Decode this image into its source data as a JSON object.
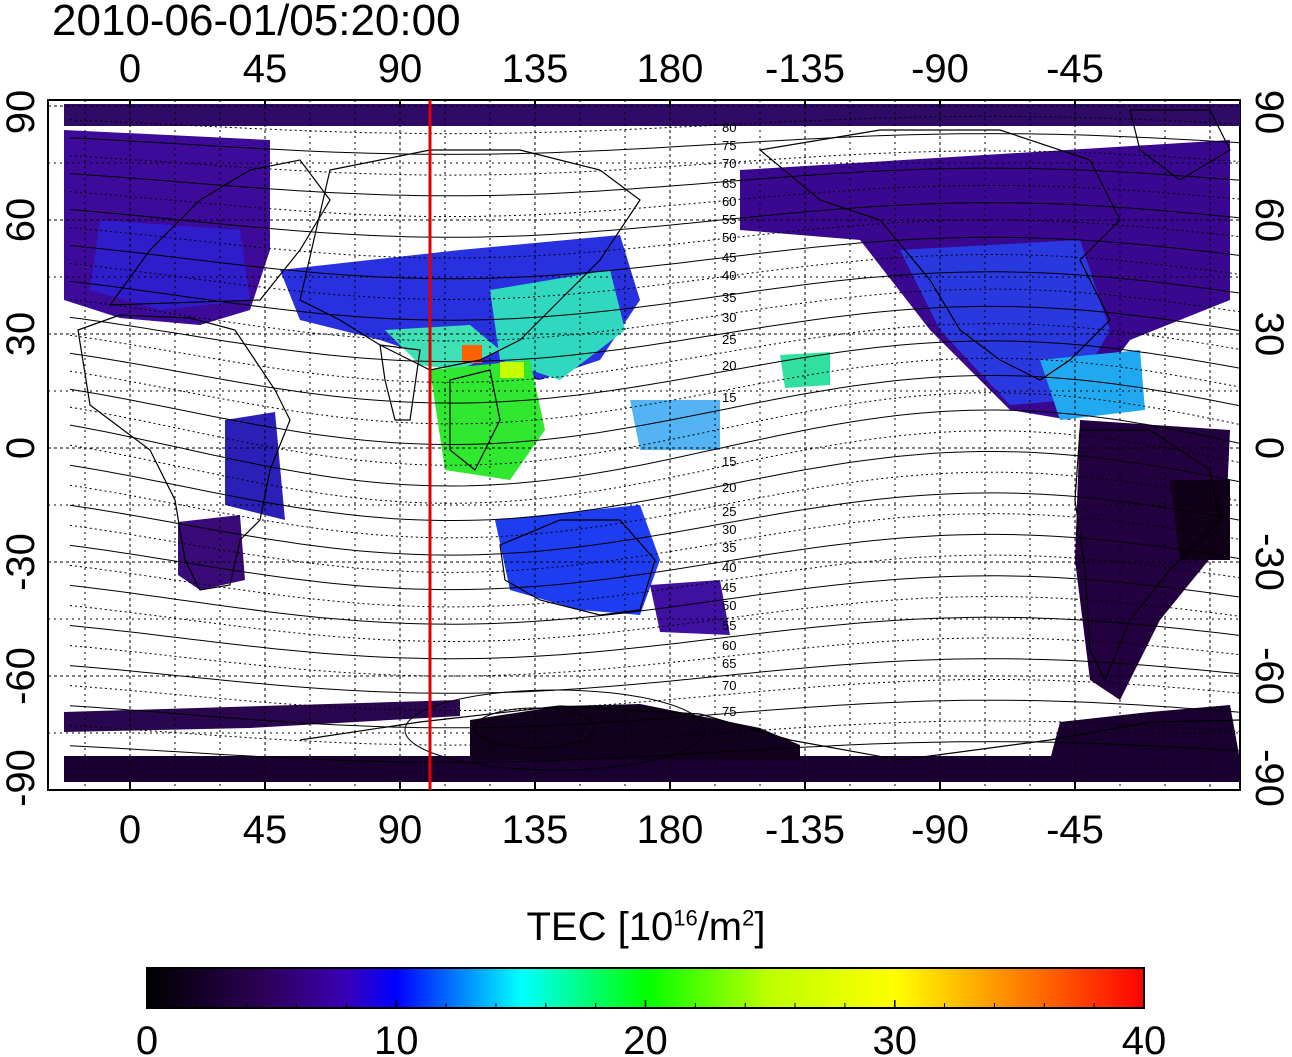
{
  "title": "2010-06-01/05:20:00",
  "map": {
    "top_lon_ticks": [
      "0",
      "45",
      "90",
      "135",
      "180",
      "-135",
      "-90",
      "-45"
    ],
    "bottom_lon_ticks": [
      "0",
      "45",
      "90",
      "135",
      "180",
      "-135",
      "-90",
      "-45"
    ],
    "left_lat_ticks": [
      "90",
      "60",
      "30",
      "0",
      "-30",
      "-60",
      "-90"
    ],
    "right_lat_ticks": [
      "90",
      "60",
      "30",
      "0",
      "-30",
      "-60",
      "-90"
    ],
    "marker_longitude": 100,
    "marker_color": "#e00000",
    "magnetic_contour_labels_north": [
      "80",
      "75",
      "70",
      "65",
      "60",
      "55",
      "50",
      "45",
      "40",
      "35",
      "30",
      "25",
      "20",
      "15"
    ],
    "magnetic_contour_labels_south": [
      "15",
      "20",
      "25",
      "30",
      "35",
      "40",
      "45",
      "50",
      "55",
      "60",
      "65",
      "70",
      "75"
    ]
  },
  "colorbar": {
    "label_main": "TEC  [10",
    "label_sup1": "16",
    "label_mid": "/m",
    "label_sup2": "2",
    "label_end": "]",
    "ticks": [
      "0",
      "10",
      "20",
      "30",
      "40"
    ],
    "range": [
      0,
      40
    ],
    "colors": [
      "#000000",
      "#3a006a",
      "#1a00dd",
      "#0000ff",
      "#00ffff",
      "#00ff00",
      "#ffff00",
      "#ff8000",
      "#ff0000"
    ]
  }
}
